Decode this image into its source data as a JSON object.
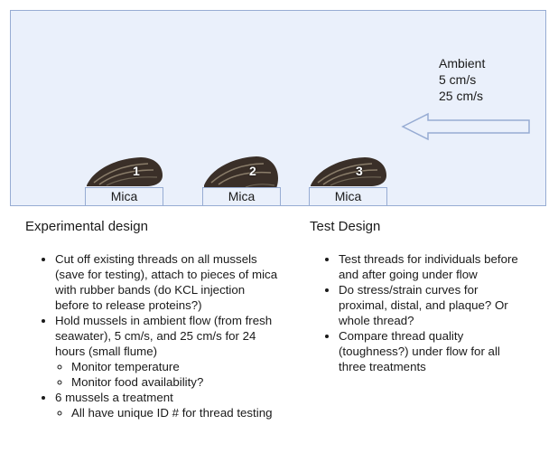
{
  "ambient": {
    "lines": [
      "Ambient",
      "5 cm/s",
      "25 cm/s"
    ]
  },
  "mussels": [
    {
      "number": "1",
      "mica_label": "Mica"
    },
    {
      "number": "2",
      "mica_label": "Mica"
    },
    {
      "number": "3",
      "mica_label": "Mica"
    }
  ],
  "experimental_design": {
    "heading": "Experimental design",
    "items": [
      {
        "text": "Cut off existing threads on all mussels (save for testing), attach to pieces of mica with rubber bands (do KCL injection before to release proteins?)",
        "sub": []
      },
      {
        "text": "Hold mussels in ambient flow (from fresh seawater), 5 cm/s, and 25 cm/s for 24 hours (small flume)",
        "sub": [
          "Monitor temperature",
          "Monitor food availability?"
        ]
      },
      {
        "text": "6 mussels a treatment",
        "sub": [
          "All have unique ID # for thread testing"
        ]
      }
    ]
  },
  "test_design": {
    "heading": "Test Design",
    "items": [
      "Test threads for individuals before and after going under flow",
      "Do stress/strain curves for proximal, distal, and plaque? Or whole thread?",
      "Compare thread quality (toughness?) under flow for all three treatments"
    ]
  },
  "colors": {
    "flume_fill": "#eaf0fb",
    "flume_border": "#97acd3",
    "mussel_shell": "#3a2f28"
  }
}
